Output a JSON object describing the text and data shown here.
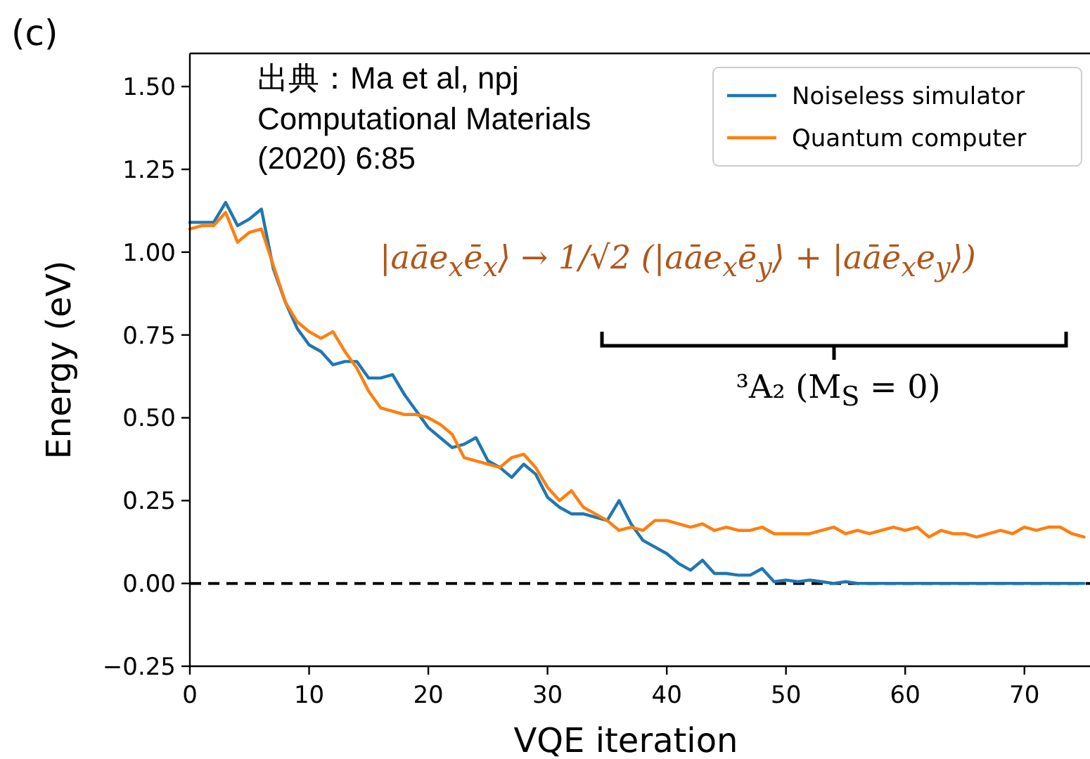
{
  "chart_data": {
    "type": "line",
    "xlabel": "VQE iteration",
    "ylabel": "Energy (eV)",
    "annotations": [
      "(c)",
      "出典：Ma et al, npj Computational Materials (2020) 6:85",
      "|aāe$_{x}$ē$_{x}$⟩ → 1/√2 (|aāe$_{x}$ē$_{y}$⟩ + |aāē$_{x}$e$_{y}$⟩)",
      "³A₂ (M$_{S}$ = 0)"
    ],
    "x": [
      0,
      1,
      2,
      3,
      4,
      5,
      6,
      7,
      8,
      9,
      10,
      11,
      12,
      13,
      14,
      15,
      16,
      17,
      18,
      19,
      20,
      21,
      22,
      23,
      24,
      25,
      26,
      27,
      28,
      29,
      30,
      31,
      32,
      33,
      34,
      35,
      36,
      37,
      38,
      39,
      40,
      41,
      42,
      43,
      44,
      45,
      46,
      47,
      48,
      49,
      50,
      51,
      52,
      53,
      54,
      55,
      56,
      57,
      58,
      59,
      60,
      61,
      62,
      63,
      64,
      65,
      66,
      67,
      68,
      69,
      70,
      71,
      72,
      73,
      74,
      75
    ],
    "series": [
      {
        "name": "Noiseless simulator",
        "color": "#1f77b4",
        "values": [
          1.09,
          1.09,
          1.09,
          1.15,
          1.08,
          1.1,
          1.13,
          0.95,
          0.85,
          0.77,
          0.72,
          0.7,
          0.66,
          0.67,
          0.67,
          0.62,
          0.62,
          0.63,
          0.57,
          0.52,
          0.47,
          0.44,
          0.41,
          0.42,
          0.44,
          0.37,
          0.35,
          0.32,
          0.36,
          0.33,
          0.26,
          0.23,
          0.21,
          0.21,
          0.2,
          0.19,
          0.25,
          0.18,
          0.13,
          0.11,
          0.09,
          0.06,
          0.04,
          0.07,
          0.03,
          0.03,
          0.025,
          0.025,
          0.045,
          0.005,
          0.01,
          0.005,
          0.01,
          0.005,
          0,
          0.005,
          0,
          0,
          0,
          0,
          0,
          0,
          0,
          0,
          0,
          0,
          0,
          0,
          0,
          0,
          0,
          0,
          0,
          0,
          0,
          0
        ]
      },
      {
        "name": "Quantum computer",
        "color": "#ff7f0e",
        "values": [
          1.07,
          1.08,
          1.08,
          1.12,
          1.03,
          1.06,
          1.07,
          0.96,
          0.85,
          0.79,
          0.76,
          0.74,
          0.76,
          0.7,
          0.65,
          0.58,
          0.53,
          0.52,
          0.51,
          0.51,
          0.5,
          0.48,
          0.45,
          0.38,
          0.37,
          0.36,
          0.35,
          0.38,
          0.39,
          0.35,
          0.29,
          0.25,
          0.28,
          0.23,
          0.21,
          0.19,
          0.16,
          0.17,
          0.16,
          0.19,
          0.19,
          0.18,
          0.17,
          0.18,
          0.16,
          0.17,
          0.16,
          0.16,
          0.17,
          0.15,
          0.15,
          0.15,
          0.15,
          0.16,
          0.17,
          0.15,
          0.16,
          0.15,
          0.16,
          0.17,
          0.16,
          0.17,
          0.14,
          0.16,
          0.15,
          0.15,
          0.14,
          0.15,
          0.16,
          0.15,
          0.17,
          0.16,
          0.17,
          0.17,
          0.15,
          0.14
        ]
      }
    ],
    "xlim": [
      0,
      75.5
    ],
    "ylim": [
      -0.25,
      1.6
    ],
    "xticks": [
      0,
      10,
      20,
      30,
      40,
      50,
      60,
      70
    ],
    "yticks": [
      {
        "value": -0.25,
        "label": "−0.25"
      },
      {
        "value": 0,
        "label": "0.00"
      },
      {
        "value": 0.25,
        "label": "0.25"
      },
      {
        "value": 0.5,
        "label": "0.50"
      },
      {
        "value": 0.75,
        "label": "0.75"
      },
      {
        "value": 1.0,
        "label": "1.00"
      },
      {
        "value": 1.25,
        "label": "1.25"
      },
      {
        "value": 1.5,
        "label": "1.50"
      }
    ],
    "ref_lines": [
      {
        "axis": "y",
        "value": 0,
        "color": "#000000",
        "line_style": "dashed"
      }
    ],
    "grid": false,
    "legend": "top right",
    "marker": "none",
    "line_style": "solid"
  }
}
